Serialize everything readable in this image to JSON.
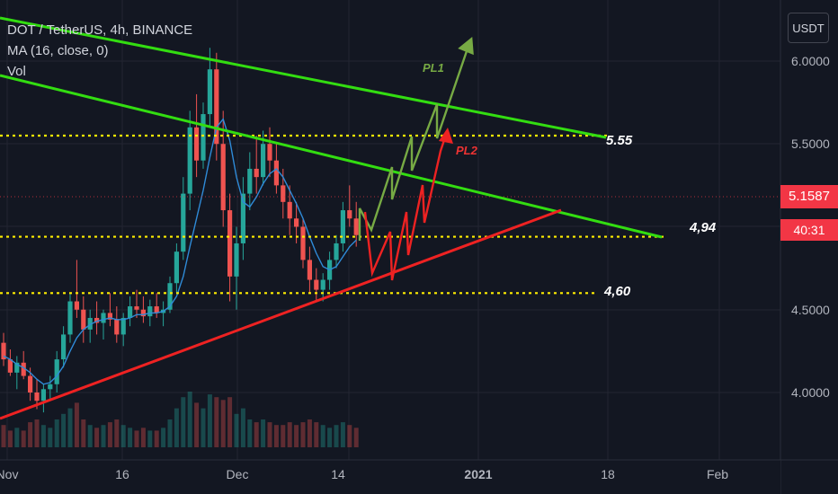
{
  "legend": {
    "symbol_line": "DOT / TetherUS, 4h, BINANCE",
    "ma_line": "MA (16, close, 0)",
    "vol_line": "Vol"
  },
  "currency_button": "USDT",
  "price_axis_labels": [
    "6.0000",
    "5.5000",
    "4.5000",
    "4.0000"
  ],
  "current_price": "5.1587",
  "countdown": "40:31",
  "time_axis_labels": [
    "Nov",
    "16",
    "Dec",
    "14",
    "2021",
    "18",
    "Feb"
  ],
  "annotations": {
    "levels": [
      {
        "label": "5.55",
        "value": 5.55
      },
      {
        "label": "4,94",
        "value": 4.94
      },
      {
        "label": "4,60",
        "value": 4.6
      }
    ],
    "pl1": "PL1",
    "pl2": "PL2"
  },
  "colors": {
    "background": "#131722",
    "up_candle": "#26a69a",
    "down_candle": "#ef5350",
    "ma_line": "#2f8bd8",
    "resistance_line": "#33dd11",
    "support_line": "#ee2222",
    "level_dots": "#ffee00",
    "pl1_path": "#77aa44",
    "pl2_path": "#ee2222",
    "current_price_tag": "#f23645"
  },
  "chart_data": {
    "type": "candlestick",
    "ylim": [
      3.78,
      6.28
    ],
    "candles": [
      [
        4.3,
        4.36,
        4.16,
        4.2
      ],
      [
        4.2,
        4.26,
        4.1,
        4.12
      ],
      [
        4.12,
        4.22,
        4.02,
        4.18
      ],
      [
        4.18,
        4.25,
        4.08,
        4.1
      ],
      [
        4.1,
        4.15,
        3.95,
        4.0
      ],
      [
        4.0,
        4.08,
        3.9,
        3.95
      ],
      [
        3.95,
        4.05,
        3.88,
        4.02
      ],
      [
        4.02,
        4.1,
        3.96,
        4.05
      ],
      [
        4.05,
        4.25,
        4.0,
        4.2
      ],
      [
        4.2,
        4.4,
        4.15,
        4.35
      ],
      [
        4.35,
        4.6,
        4.3,
        4.55
      ],
      [
        4.55,
        4.8,
        4.45,
        4.5
      ],
      [
        4.5,
        4.58,
        4.3,
        4.38
      ],
      [
        4.38,
        4.5,
        4.3,
        4.45
      ],
      [
        4.45,
        4.55,
        4.35,
        4.42
      ],
      [
        4.42,
        4.5,
        4.32,
        4.48
      ],
      [
        4.48,
        4.6,
        4.4,
        4.44
      ],
      [
        4.44,
        4.52,
        4.3,
        4.35
      ],
      [
        4.35,
        4.48,
        4.28,
        4.45
      ],
      [
        4.45,
        4.58,
        4.4,
        4.52
      ],
      [
        4.52,
        4.62,
        4.45,
        4.5
      ],
      [
        4.5,
        4.58,
        4.42,
        4.46
      ],
      [
        4.46,
        4.56,
        4.4,
        4.52
      ],
      [
        4.52,
        4.6,
        4.45,
        4.48
      ],
      [
        4.48,
        4.55,
        4.4,
        4.5
      ],
      [
        4.5,
        4.7,
        4.48,
        4.66
      ],
      [
        4.66,
        4.9,
        4.6,
        4.85
      ],
      [
        4.85,
        5.3,
        4.8,
        5.2
      ],
      [
        5.2,
        5.7,
        5.1,
        5.6
      ],
      [
        5.6,
        5.8,
        5.3,
        5.4
      ],
      [
        5.4,
        5.75,
        5.35,
        5.68
      ],
      [
        5.68,
        6.08,
        5.6,
        5.95
      ],
      [
        5.95,
        6.05,
        5.4,
        5.5
      ],
      [
        5.5,
        5.7,
        5.0,
        5.1
      ],
      [
        5.1,
        5.2,
        4.55,
        4.7
      ],
      [
        4.7,
        5.0,
        4.5,
        4.9
      ],
      [
        4.9,
        5.3,
        4.8,
        5.2
      ],
      [
        5.2,
        5.45,
        5.1,
        5.35
      ],
      [
        5.35,
        5.55,
        5.2,
        5.3
      ],
      [
        5.3,
        5.58,
        5.25,
        5.5
      ],
      [
        5.5,
        5.6,
        5.3,
        5.4
      ],
      [
        5.4,
        5.5,
        5.2,
        5.25
      ],
      [
        5.25,
        5.35,
        5.05,
        5.15
      ],
      [
        5.15,
        5.25,
        4.95,
        5.05
      ],
      [
        5.05,
        5.15,
        4.9,
        5.0
      ],
      [
        5.0,
        5.05,
        4.75,
        4.8
      ],
      [
        4.8,
        4.88,
        4.6,
        4.68
      ],
      [
        4.68,
        4.75,
        4.55,
        4.62
      ],
      [
        4.62,
        4.72,
        4.55,
        4.68
      ],
      [
        4.68,
        4.85,
        4.62,
        4.8
      ],
      [
        4.8,
        4.95,
        4.75,
        4.9
      ],
      [
        4.9,
        5.15,
        4.85,
        5.1
      ],
      [
        5.1,
        5.25,
        5.0,
        5.05
      ],
      [
        5.05,
        5.15,
        4.88,
        4.95
      ]
    ],
    "ma": [
      4.22,
      4.2,
      4.17,
      4.15,
      4.12,
      4.08,
      4.05,
      4.06,
      4.1,
      4.16,
      4.25,
      4.33,
      4.38,
      4.41,
      4.43,
      4.44,
      4.45,
      4.44,
      4.44,
      4.45,
      4.47,
      4.47,
      4.48,
      4.48,
      4.49,
      4.52,
      4.58,
      4.7,
      4.88,
      5.05,
      5.22,
      5.42,
      5.6,
      5.65,
      5.52,
      5.3,
      5.15,
      5.12,
      5.18,
      5.26,
      5.32,
      5.35,
      5.3,
      5.22,
      5.14,
      5.05,
      4.94,
      4.84,
      4.76,
      4.74,
      4.76,
      4.82,
      4.88,
      4.92
    ],
    "volumes": [
      0.4,
      0.3,
      0.35,
      0.3,
      0.45,
      0.5,
      0.4,
      0.35,
      0.5,
      0.6,
      0.7,
      0.8,
      0.5,
      0.4,
      0.35,
      0.4,
      0.45,
      0.5,
      0.4,
      0.35,
      0.3,
      0.35,
      0.3,
      0.3,
      0.35,
      0.5,
      0.7,
      0.9,
      1.0,
      0.8,
      0.7,
      0.95,
      0.9,
      0.85,
      0.9,
      0.6,
      0.7,
      0.5,
      0.45,
      0.5,
      0.45,
      0.4,
      0.4,
      0.45,
      0.4,
      0.45,
      0.5,
      0.45,
      0.4,
      0.35,
      0.4,
      0.45,
      0.4,
      0.35
    ],
    "trendlines": [
      {
        "role": "resistance",
        "from": [
          0,
          6.28
        ],
        "to": [
          95,
          5.52
        ]
      },
      {
        "role": "resistance",
        "from": [
          0,
          5.92
        ],
        "to": [
          104,
          4.9
        ]
      },
      {
        "role": "support",
        "from": [
          0,
          3.78
        ],
        "to": [
          90,
          5.05
        ]
      }
    ]
  }
}
